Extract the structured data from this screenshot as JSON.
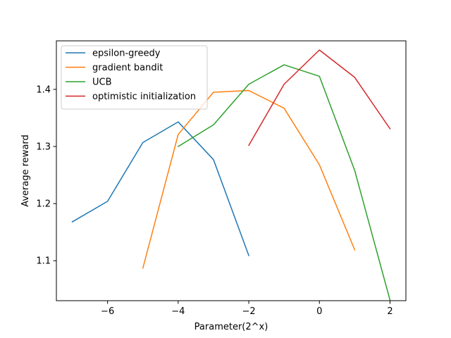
{
  "chart_data": {
    "type": "line",
    "title": "",
    "xlabel": "Parameter(2^x)",
    "ylabel": "Average reward",
    "xlim": [
      -7.45,
      2.45
    ],
    "ylim": [
      1.03,
      1.485
    ],
    "xticks": [
      -6,
      -4,
      -2,
      0,
      2
    ],
    "xtick_labels": [
      "−6",
      "−4",
      "−2",
      "0",
      "2"
    ],
    "yticks": [
      1.1,
      1.2,
      1.3,
      1.4
    ],
    "ytick_labels": [
      "1.1",
      "1.2",
      "1.3",
      "1.4"
    ],
    "grid": false,
    "legend_position": "upper-left",
    "series": [
      {
        "name": "epsilon-greedy",
        "color": "#1f77b4",
        "x": [
          -7,
          -6,
          -5,
          -4,
          -3,
          -2
        ],
        "y": [
          1.168,
          1.204,
          1.307,
          1.343,
          1.277,
          1.109
        ]
      },
      {
        "name": "gradient bandit",
        "color": "#ff7f0e",
        "x": [
          -5,
          -4,
          -3,
          -2,
          -1,
          0,
          1
        ],
        "y": [
          1.087,
          1.321,
          1.395,
          1.398,
          1.367,
          1.268,
          1.119
        ]
      },
      {
        "name": "UCB",
        "color": "#2ca02c",
        "x": [
          -4,
          -3,
          -2,
          -1,
          0,
          1,
          2
        ],
        "y": [
          1.3,
          1.338,
          1.409,
          1.443,
          1.423,
          1.258,
          1.031
        ]
      },
      {
        "name": "optimistic initialization",
        "color": "#d62728",
        "x": [
          -2,
          -1,
          0,
          1,
          2
        ],
        "y": [
          1.302,
          1.409,
          1.469,
          1.421,
          1.331
        ]
      }
    ]
  }
}
